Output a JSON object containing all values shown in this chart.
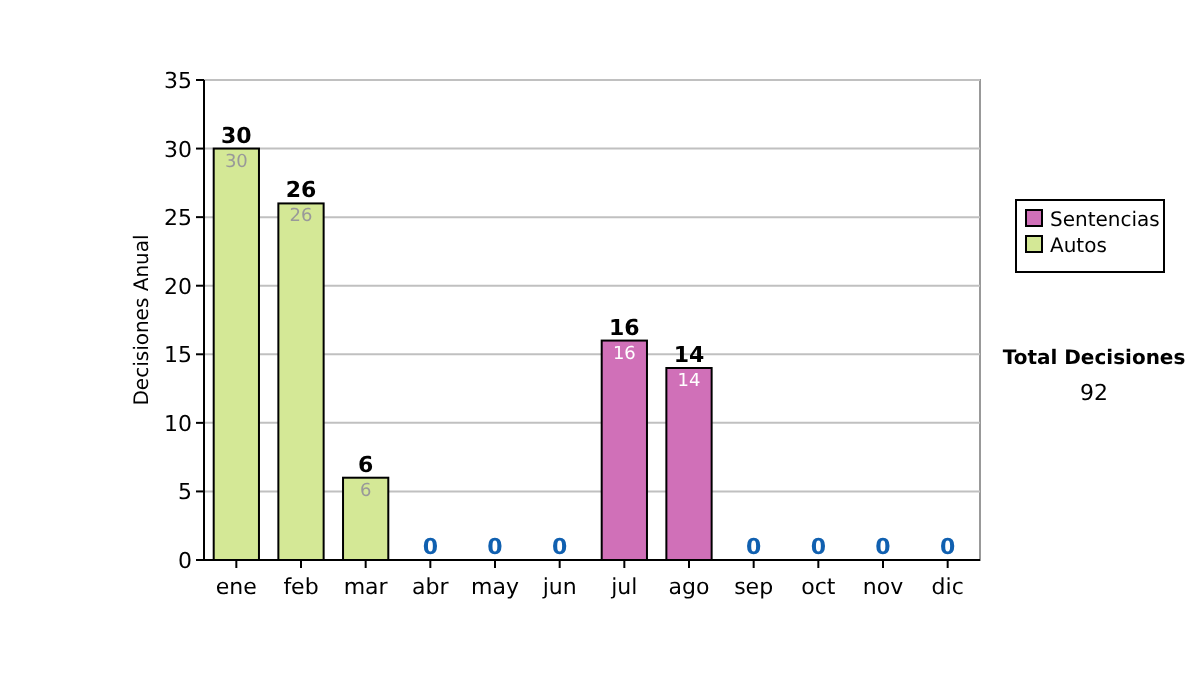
{
  "chart_data": {
    "type": "bar",
    "ylabel": "Decisiones Anual",
    "categories": [
      "ene",
      "feb",
      "mar",
      "abr",
      "may",
      "jun",
      "jul",
      "ago",
      "sep",
      "oct",
      "nov",
      "dic"
    ],
    "stacked": true,
    "series": [
      {
        "name": "Sentencias",
        "color": "#d070b8",
        "values": [
          0,
          0,
          0,
          0,
          0,
          0,
          16,
          14,
          0,
          0,
          0,
          0
        ],
        "value_labels": [
          null,
          null,
          null,
          null,
          null,
          null,
          "16",
          "14",
          null,
          null,
          null,
          null
        ]
      },
      {
        "name": "Autos",
        "color": "#d4e896",
        "values": [
          30,
          26,
          6,
          0,
          0,
          0,
          0,
          0,
          0,
          0,
          0,
          0
        ],
        "value_labels": [
          "30",
          "26",
          "6",
          null,
          null,
          null,
          null,
          null,
          null,
          null,
          null,
          null
        ]
      }
    ],
    "totals": [
      "30",
      "26",
      "6",
      "0",
      "0",
      "0",
      "16",
      "14",
      "0",
      "0",
      "0",
      "0"
    ],
    "ylim": [
      0,
      35
    ],
    "yticks": [
      0,
      5,
      10,
      15,
      20,
      25,
      30,
      35
    ],
    "grid": "y",
    "legend": "right",
    "annotations": [
      "Total Decisiones",
      "92"
    ]
  }
}
